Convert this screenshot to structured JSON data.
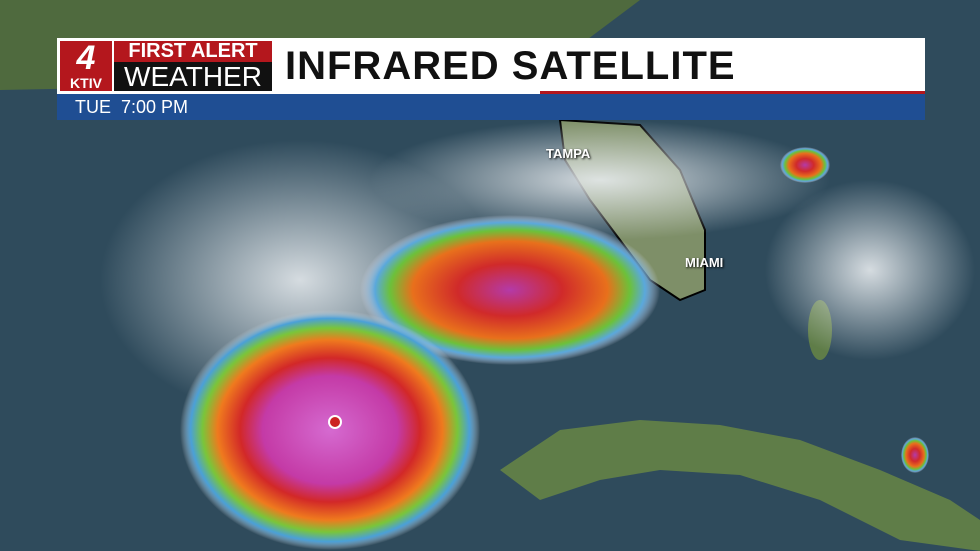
{
  "logo": {
    "channel_number": "4",
    "station": "KTIV",
    "line1": "FIRST ALERT",
    "line2": "WEATHER"
  },
  "header": {
    "title": "INFRARED SATELLITE",
    "time": "TUE  7:00 PM"
  },
  "map": {
    "cities": [
      {
        "name": "TAMPA"
      },
      {
        "name": "MIAMI"
      }
    ]
  },
  "colors": {
    "brand_red": "#b4171d",
    "time_bar_blue": "#1f4e93",
    "ocean": "#2f4b5c",
    "land": "#5f7d48"
  }
}
